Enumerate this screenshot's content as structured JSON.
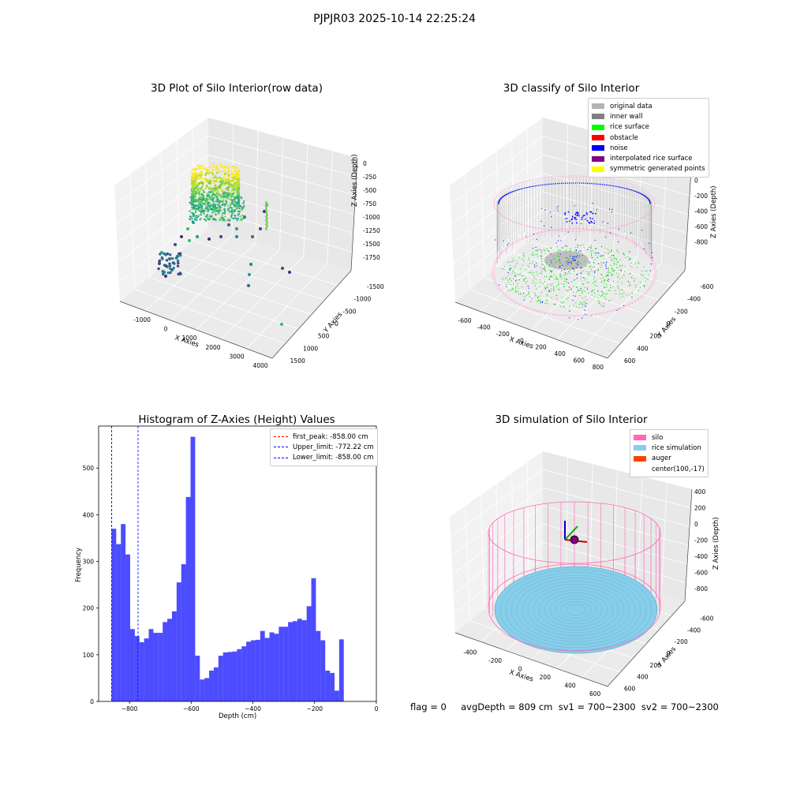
{
  "suptitle": "PJPJR03 2025-10-14 22:25:24",
  "panels": {
    "raw": {
      "title": "3D Plot of Silo Interior(row data)",
      "xlabel": "X Axies",
      "ylabel": "Y Axies",
      "zlabel": "Z Axies (Depth)",
      "xticks": [
        "-1000",
        "0",
        "1000",
        "2000",
        "3000",
        "4000"
      ],
      "yticks": [
        "1500",
        "1000",
        "500",
        "0",
        "-500",
        "-1000",
        "-1500"
      ],
      "zticks": [
        "0",
        "-250",
        "-500",
        "-750",
        "-1000",
        "-1250",
        "-1500",
        "-1750"
      ]
    },
    "classify": {
      "title": "3D classify of Silo Interior",
      "xlabel": "X Axies",
      "ylabel": "Y Axies",
      "zlabel": "Z Axies (Depth)",
      "xticks": [
        "-600",
        "-400",
        "-200",
        "0",
        "200",
        "400",
        "600",
        "800"
      ],
      "yticks": [
        "600",
        "400",
        "200",
        "0",
        "-200",
        "-400",
        "-600"
      ],
      "zticks": [
        "200",
        "0",
        "-200",
        "-400",
        "-600",
        "-800"
      ],
      "legend": [
        {
          "label": "original data",
          "color": "#b3b3b3"
        },
        {
          "label": "inner wall",
          "color": "#808080"
        },
        {
          "label": "rice surface",
          "color": "#00ff00"
        },
        {
          "label": "obstacle",
          "color": "#ff0000"
        },
        {
          "label": "noise",
          "color": "#0000ff"
        },
        {
          "label": "interpolated rice surface",
          "color": "#800080"
        },
        {
          "label": "symmetric generated points",
          "color": "#ffff00"
        }
      ]
    },
    "simulation": {
      "title": "3D simulation of Silo Interior",
      "xlabel": "X Axies",
      "ylabel": "Y Axies",
      "zlabel": "Z Axies (Depth)",
      "xticks": [
        "-400",
        "-200",
        "0",
        "200",
        "400",
        "600"
      ],
      "yticks": [
        "600",
        "400",
        "200",
        "0",
        "-200",
        "-400",
        "-600"
      ],
      "zticks": [
        "400",
        "200",
        "0",
        "-200",
        "-400",
        "-600",
        "-800"
      ],
      "legend": [
        {
          "label": "silo",
          "color": "#ff69b4"
        },
        {
          "label": "rice simulation",
          "color": "#87ceeb"
        },
        {
          "label": "auger",
          "color": "#ff4500"
        },
        {
          "label": "center(100,-17)",
          "color": ""
        }
      ]
    }
  },
  "footer": "flag = 0     avgDepth = 809 cm  sv1 = 700~2300  sv2 = 700~2300",
  "chart_data": {
    "type": "bar",
    "title": "Histogram of Z-Axies (Height) Values",
    "xlabel": "Depth (cm)",
    "ylabel": "Frequency",
    "xlim": [
      -900,
      0
    ],
    "ylim": [
      0,
      590
    ],
    "xticks": [
      -800,
      -600,
      -400,
      -200,
      0
    ],
    "yticks": [
      0,
      100,
      200,
      300,
      400,
      500
    ],
    "bin_start": -858,
    "bin_width": 15.05,
    "values": [
      370,
      337,
      380,
      315,
      155,
      140,
      127,
      135,
      155,
      147,
      147,
      170,
      177,
      193,
      255,
      294,
      438,
      567,
      98,
      47,
      50,
      66,
      73,
      98,
      105,
      106,
      107,
      112,
      118,
      128,
      131,
      132,
      151,
      136,
      148,
      145,
      160,
      160,
      170,
      172,
      177,
      174,
      204,
      264,
      151,
      131,
      66,
      61,
      23,
      133
    ],
    "bar_color": "#0000ff",
    "lines": [
      {
        "label": "first_peak: -858.00 cm",
        "value": -858,
        "color": "#ff0000"
      },
      {
        "label": "Upper_limit: -772.22 cm",
        "value": -772.22,
        "color": "#0000ff"
      },
      {
        "label": "Lower_limit: -858.00 cm",
        "value": -858,
        "color": "#0000ff"
      }
    ]
  }
}
